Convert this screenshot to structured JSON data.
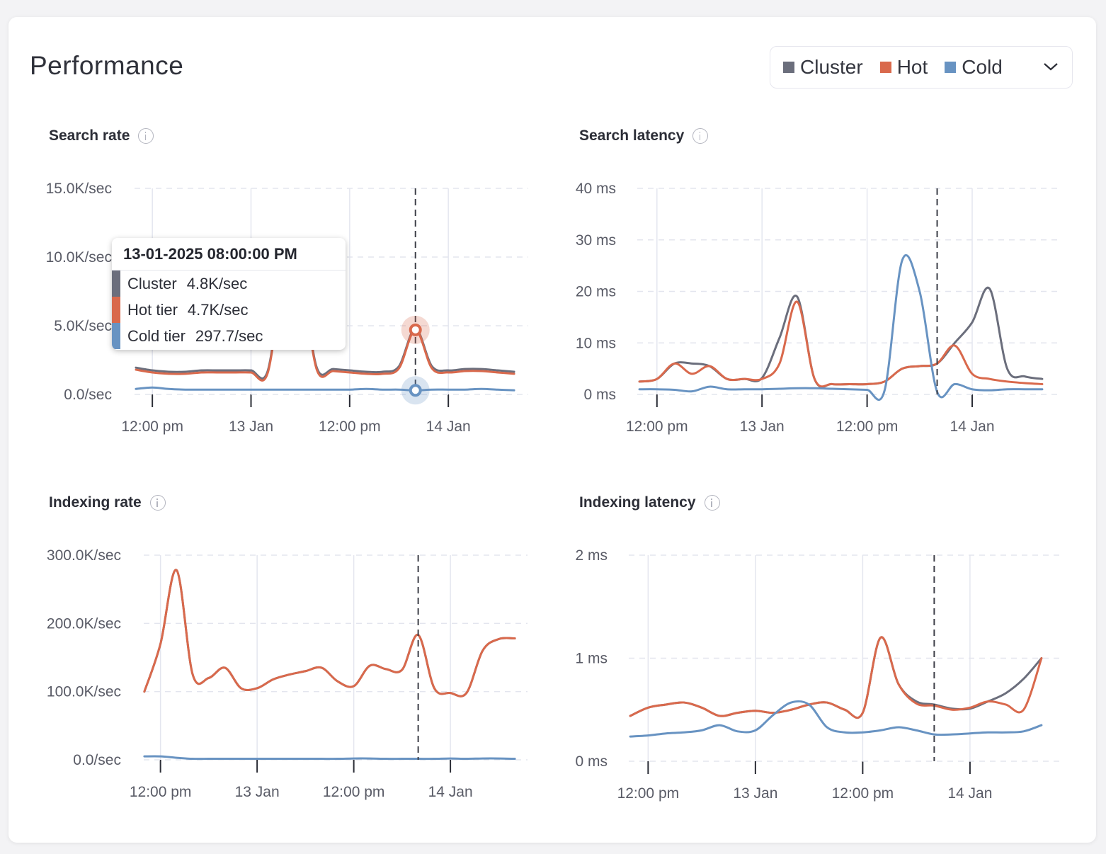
{
  "header": {
    "title": "Performance"
  },
  "legend": {
    "items": [
      {
        "label": "Cluster",
        "color": "#6b6e7c"
      },
      {
        "label": "Hot",
        "color": "#d9694c"
      },
      {
        "label": "Cold",
        "color": "#6893c2"
      }
    ],
    "dropdown_icon": "chevron-down-icon"
  },
  "tooltip": {
    "title": "13-01-2025 08:00:00 PM",
    "rows": [
      {
        "label": "Cluster",
        "value": "4.8K/sec",
        "color": "#6b6e7c"
      },
      {
        "label": "Hot tier",
        "value": "4.7K/sec",
        "color": "#d9694c"
      },
      {
        "label": "Cold tier",
        "value": "297.7/sec",
        "color": "#6893c2"
      }
    ]
  },
  "chart_data": [
    {
      "type": "line",
      "title": "Search rate",
      "info_icon": "info-icon",
      "xlim": [
        "2025-01-12T09:50",
        "2025-01-14T08:10"
      ],
      "ylim": [
        0,
        15000
      ],
      "y_ticks": [
        {
          "value": 0,
          "label": "0.0/sec"
        },
        {
          "value": 5000,
          "label": "5.0K/sec"
        },
        {
          "value": 10000,
          "label": "10.0K/sec"
        },
        {
          "value": 15000,
          "label": "15.0K/sec"
        }
      ],
      "x_ticks": [
        {
          "value": "2025-01-12T12:00",
          "label": "12:00 pm"
        },
        {
          "value": "2025-01-13T00:00",
          "label": "13 Jan"
        },
        {
          "value": "2025-01-13T12:00",
          "label": "12:00 pm"
        },
        {
          "value": "2025-01-14T00:00",
          "label": "14 Jan"
        }
      ],
      "grid": true,
      "hover_x": "2025-01-13T20:00",
      "hover_markers": [
        "Hot",
        "Cold"
      ],
      "x": [
        "2025-01-12T10:00",
        "2025-01-12T12:00",
        "2025-01-12T14:00",
        "2025-01-12T16:00",
        "2025-01-12T18:00",
        "2025-01-12T20:00",
        "2025-01-12T22:00",
        "2025-01-13T00:00",
        "2025-01-13T02:00",
        "2025-01-13T04:00",
        "2025-01-13T06:00",
        "2025-01-13T08:00",
        "2025-01-13T10:00",
        "2025-01-13T12:00",
        "2025-01-13T14:00",
        "2025-01-13T16:00",
        "2025-01-13T18:00",
        "2025-01-13T20:00",
        "2025-01-13T22:00",
        "2025-01-14T00:00",
        "2025-01-14T02:00",
        "2025-01-14T04:00",
        "2025-01-14T06:00",
        "2025-01-14T08:00"
      ],
      "series": [
        {
          "name": "Cluster",
          "color": "#6b6e7c",
          "values": [
            1950,
            1750,
            1650,
            1650,
            1750,
            1750,
            1750,
            1750,
            1650,
            8650,
            8650,
            1950,
            1850,
            1750,
            1650,
            1650,
            2050,
            4800,
            2050,
            1750,
            1850,
            1850,
            1750,
            1650
          ]
        },
        {
          "name": "Hot",
          "color": "#d9694c",
          "values": [
            1800,
            1600,
            1500,
            1500,
            1600,
            1600,
            1600,
            1600,
            1500,
            8500,
            8500,
            1800,
            1700,
            1600,
            1500,
            1500,
            1900,
            4700,
            1900,
            1600,
            1700,
            1700,
            1600,
            1500
          ]
        },
        {
          "name": "Cold",
          "color": "#6893c2",
          "values": [
            400,
            500,
            400,
            350,
            350,
            350,
            350,
            350,
            350,
            350,
            350,
            350,
            350,
            350,
            400,
            350,
            350,
            297.7,
            350,
            350,
            350,
            400,
            350,
            300
          ]
        }
      ]
    },
    {
      "type": "line",
      "title": "Search latency",
      "info_icon": "info-icon",
      "xlim": [
        "2025-01-12T09:50",
        "2025-01-14T08:10"
      ],
      "ylim": [
        0,
        40
      ],
      "y_ticks": [
        {
          "value": 0,
          "label": "0 ms"
        },
        {
          "value": 10,
          "label": "10 ms"
        },
        {
          "value": 20,
          "label": "20 ms"
        },
        {
          "value": 30,
          "label": "30 ms"
        },
        {
          "value": 40,
          "label": "40 ms"
        }
      ],
      "x_ticks": [
        {
          "value": "2025-01-12T12:00",
          "label": "12:00 pm"
        },
        {
          "value": "2025-01-13T00:00",
          "label": "13 Jan"
        },
        {
          "value": "2025-01-13T12:00",
          "label": "12:00 pm"
        },
        {
          "value": "2025-01-14T00:00",
          "label": "14 Jan"
        }
      ],
      "grid": true,
      "hover_x": "2025-01-13T20:00",
      "x": [
        "2025-01-12T10:00",
        "2025-01-12T12:00",
        "2025-01-12T14:00",
        "2025-01-12T16:00",
        "2025-01-12T18:00",
        "2025-01-12T20:00",
        "2025-01-12T22:00",
        "2025-01-13T00:00",
        "2025-01-13T02:00",
        "2025-01-13T04:00",
        "2025-01-13T06:00",
        "2025-01-13T08:00",
        "2025-01-13T10:00",
        "2025-01-13T12:00",
        "2025-01-13T14:00",
        "2025-01-13T16:00",
        "2025-01-13T18:00",
        "2025-01-13T20:00",
        "2025-01-13T22:00",
        "2025-01-14T00:00",
        "2025-01-14T02:00",
        "2025-01-14T04:00",
        "2025-01-14T06:00",
        "2025-01-14T08:00"
      ],
      "series": [
        {
          "name": "Cluster",
          "color": "#6b6e7c",
          "values": [
            2.5,
            3,
            6,
            6,
            5.5,
            3,
            3,
            3.2,
            11,
            19,
            3,
            2,
            2,
            2,
            2.5,
            5,
            5.5,
            6,
            10,
            14,
            20.5,
            5,
            3.5,
            3
          ]
        },
        {
          "name": "Hot",
          "color": "#d9694c",
          "values": [
            2.5,
            3,
            6,
            4,
            5.5,
            3,
            3,
            3,
            6,
            18,
            3,
            2,
            2,
            2,
            2.5,
            5,
            5.5,
            6,
            9.5,
            4,
            3,
            2.5,
            2.2,
            2
          ]
        },
        {
          "name": "Cold",
          "color": "#6893c2",
          "values": [
            1,
            1,
            0.9,
            0.6,
            1.5,
            1,
            1,
            1,
            1.1,
            1.2,
            1.2,
            1.1,
            1,
            0.9,
            0.8,
            26,
            20,
            0.5,
            2,
            1,
            0.8,
            1,
            1,
            1
          ]
        }
      ]
    },
    {
      "type": "line",
      "title": "Indexing rate",
      "info_icon": "info-icon",
      "xlim": [
        "2025-01-12T09:50",
        "2025-01-14T08:10"
      ],
      "ylim": [
        0,
        300000
      ],
      "y_ticks": [
        {
          "value": 0,
          "label": "0.0/sec"
        },
        {
          "value": 100000,
          "label": "100.0K/sec"
        },
        {
          "value": 200000,
          "label": "200.0K/sec"
        },
        {
          "value": 300000,
          "label": "300.0K/sec"
        }
      ],
      "x_ticks": [
        {
          "value": "2025-01-12T12:00",
          "label": "12:00 pm"
        },
        {
          "value": "2025-01-13T00:00",
          "label": "13 Jan"
        },
        {
          "value": "2025-01-13T12:00",
          "label": "12:00 pm"
        },
        {
          "value": "2025-01-14T00:00",
          "label": "14 Jan"
        }
      ],
      "grid": true,
      "hover_x": "2025-01-13T20:00",
      "x": [
        "2025-01-12T10:00",
        "2025-01-12T12:00",
        "2025-01-12T14:00",
        "2025-01-12T16:00",
        "2025-01-12T18:00",
        "2025-01-12T20:00",
        "2025-01-12T22:00",
        "2025-01-13T00:00",
        "2025-01-13T02:00",
        "2025-01-13T04:00",
        "2025-01-13T06:00",
        "2025-01-13T08:00",
        "2025-01-13T10:00",
        "2025-01-13T12:00",
        "2025-01-13T14:00",
        "2025-01-13T16:00",
        "2025-01-13T18:00",
        "2025-01-13T20:00",
        "2025-01-13T22:00",
        "2025-01-14T00:00",
        "2025-01-14T02:00",
        "2025-01-14T04:00",
        "2025-01-14T06:00",
        "2025-01-14T08:00"
      ],
      "series": [
        {
          "name": "Cluster",
          "color": "#6b6e7c",
          "values": [
            100000,
            170000,
            278000,
            125000,
            120000,
            135000,
            105000,
            105000,
            118000,
            125000,
            130000,
            135000,
            115000,
            108000,
            138000,
            133000,
            132000,
            183000,
            105000,
            98000,
            98000,
            160000,
            177000,
            178000
          ]
        },
        {
          "name": "Hot",
          "color": "#d9694c",
          "values": [
            100000,
            170000,
            278000,
            125000,
            120000,
            135000,
            105000,
            105000,
            118000,
            125000,
            130000,
            135000,
            115000,
            108000,
            138000,
            133000,
            132000,
            183000,
            105000,
            98000,
            98000,
            160000,
            177000,
            178000
          ]
        },
        {
          "name": "Cold",
          "color": "#6893c2",
          "values": [
            5000,
            5000,
            3000,
            1500,
            1500,
            1500,
            1500,
            1500,
            1500,
            1500,
            1500,
            1500,
            1500,
            2000,
            2000,
            1500,
            1500,
            1500,
            1500,
            2000,
            1500,
            2000,
            2000,
            1500
          ]
        }
      ]
    },
    {
      "type": "line",
      "title": "Indexing latency",
      "info_icon": "info-icon",
      "xlim": [
        "2025-01-12T09:50",
        "2025-01-14T08:10"
      ],
      "ylim": [
        0,
        2
      ],
      "y_ticks": [
        {
          "value": 0,
          "label": "0 ms"
        },
        {
          "value": 1,
          "label": "1 ms"
        },
        {
          "value": 2,
          "label": "2 ms"
        }
      ],
      "x_ticks": [
        {
          "value": "2025-01-12T12:00",
          "label": "12:00 pm"
        },
        {
          "value": "2025-01-13T00:00",
          "label": "13 Jan"
        },
        {
          "value": "2025-01-13T12:00",
          "label": "12:00 pm"
        },
        {
          "value": "2025-01-14T00:00",
          "label": "14 Jan"
        }
      ],
      "grid": true,
      "hover_x": "2025-01-13T20:00",
      "x": [
        "2025-01-12T10:00",
        "2025-01-12T12:00",
        "2025-01-12T14:00",
        "2025-01-12T16:00",
        "2025-01-12T18:00",
        "2025-01-12T20:00",
        "2025-01-12T22:00",
        "2025-01-13T00:00",
        "2025-01-13T02:00",
        "2025-01-13T04:00",
        "2025-01-13T06:00",
        "2025-01-13T08:00",
        "2025-01-13T10:00",
        "2025-01-13T12:00",
        "2025-01-13T14:00",
        "2025-01-13T16:00",
        "2025-01-13T18:00",
        "2025-01-13T20:00",
        "2025-01-13T22:00",
        "2025-01-14T00:00",
        "2025-01-14T02:00",
        "2025-01-14T04:00",
        "2025-01-14T06:00",
        "2025-01-14T08:00"
      ],
      "series": [
        {
          "name": "Cluster",
          "color": "#6b6e7c",
          "values": [
            0.44,
            0.52,
            0.55,
            0.57,
            0.52,
            0.44,
            0.47,
            0.49,
            0.47,
            0.5,
            0.55,
            0.57,
            0.5,
            0.47,
            1.2,
            0.75,
            0.58,
            0.55,
            0.51,
            0.51,
            0.58,
            0.66,
            0.8,
            1.0
          ]
        },
        {
          "name": "Hot",
          "color": "#d9694c",
          "values": [
            0.44,
            0.52,
            0.55,
            0.57,
            0.52,
            0.44,
            0.47,
            0.49,
            0.47,
            0.5,
            0.55,
            0.57,
            0.5,
            0.47,
            1.2,
            0.75,
            0.56,
            0.54,
            0.5,
            0.52,
            0.58,
            0.55,
            0.5,
            1.0
          ]
        },
        {
          "name": "Cold",
          "color": "#6893c2",
          "values": [
            0.24,
            0.25,
            0.27,
            0.28,
            0.3,
            0.35,
            0.29,
            0.3,
            0.45,
            0.57,
            0.55,
            0.33,
            0.28,
            0.28,
            0.3,
            0.33,
            0.3,
            0.26,
            0.26,
            0.27,
            0.28,
            0.28,
            0.29,
            0.35
          ]
        }
      ]
    }
  ]
}
